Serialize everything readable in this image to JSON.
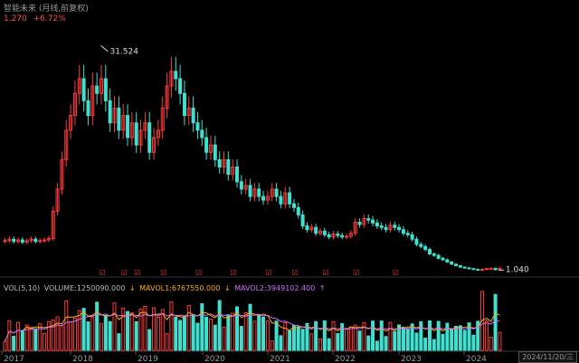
{
  "header": {
    "title": "智能未来 (月线,前复权)",
    "price": "1.270",
    "change": "+6.72%"
  },
  "volume_header": {
    "label": "VOL(5,10)",
    "volume": "VOLUME:1250090.000",
    "mavol1": "MAVOL1:6767550.000",
    "mavol2": "MAVOL2:3949102.400"
  },
  "date_label": "2024/11/20/三",
  "colors": {
    "up": "#ff3b3b",
    "down": "#40e0d0",
    "ma1": "#ffb000",
    "ma2": "#d070ff",
    "text": "#aaaaaa"
  },
  "chart_data": {
    "type": "candlestick",
    "x_tick_labels": [
      "2017",
      "2018",
      "2019",
      "2020",
      "2021",
      "2022",
      "2023",
      "2024"
    ],
    "annotations": [
      {
        "text": "31.524",
        "type": "max",
        "period": 22
      },
      {
        "text": "1.040",
        "type": "min",
        "period": 113
      }
    ],
    "marker_glyph": "☑",
    "marker_periods": [
      22,
      27,
      30,
      36,
      44,
      52,
      60,
      66,
      73,
      80,
      89
    ],
    "volume_markers": [
      "↓",
      "↓",
      "↑"
    ]
  }
}
